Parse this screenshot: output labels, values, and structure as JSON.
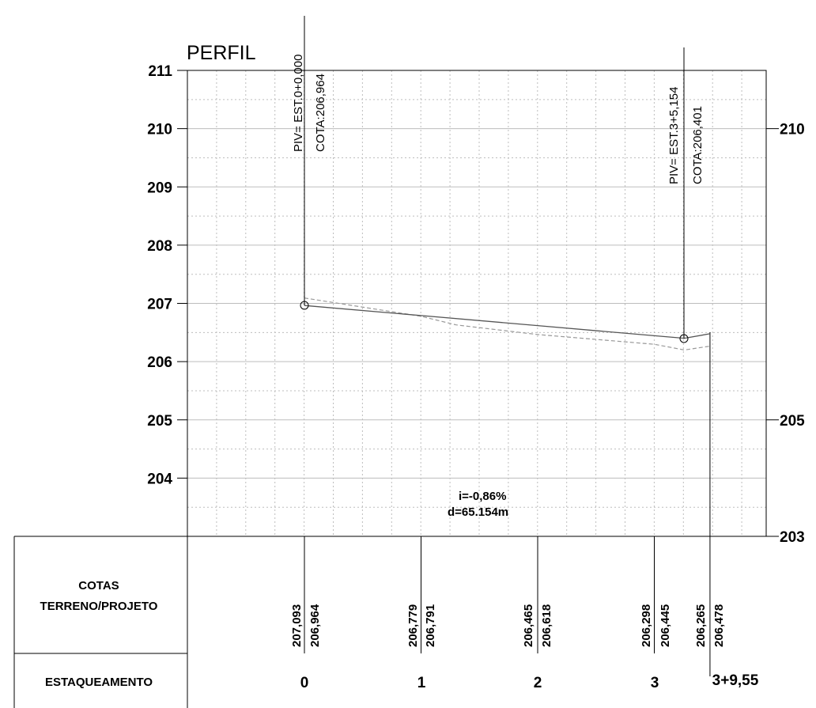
{
  "title": "PERFIL",
  "y_axis_left": [
    "211",
    "210",
    "209",
    "208",
    "207",
    "206",
    "205",
    "204"
  ],
  "y_axis_right": [
    "210",
    "205",
    "203"
  ],
  "piv": [
    {
      "label": "PIV= EST.0+0,000",
      "cota": "COTA:206,964"
    },
    {
      "label": "PIV= EST.3+5,154",
      "cota": "COTA:206,401"
    }
  ],
  "grade_note": {
    "slope": "i=-0,86%",
    "distance": "d=65.154m"
  },
  "table": {
    "row1_label_line1": "COTAS",
    "row1_label_line2": "TERRENO/PROJETO",
    "row2_label": "ESTAQUEAMENTO",
    "cota_pairs": [
      [
        "207,093",
        "206,964"
      ],
      [
        "206,779",
        "206,791"
      ],
      [
        "206,465",
        "206,618"
      ],
      [
        "206,298",
        "206,445"
      ],
      [
        "206,265",
        "206,478"
      ]
    ],
    "stations": [
      "0",
      "1",
      "2",
      "3",
      "3+9,55"
    ]
  },
  "colors": {
    "grid": "#bdbdbd",
    "line": "#000000",
    "terrain": "#999999"
  },
  "chart_data": {
    "type": "line",
    "title": "PERFIL",
    "x_unit": "station (20 m)",
    "ylim": [
      203,
      211
    ],
    "series": [
      {
        "name": "PROJETO",
        "x": [
          0,
          1,
          2,
          3,
          3.2577,
          3.4775
        ],
        "y": [
          206.964,
          206.791,
          206.618,
          206.445,
          206.401,
          206.478
        ]
      },
      {
        "name": "TERRENO",
        "x": [
          0,
          1,
          1.3,
          2,
          3,
          3.2577,
          3.4775
        ],
        "y": [
          207.093,
          206.779,
          206.63,
          206.465,
          206.298,
          206.2,
          206.265
        ]
      }
    ],
    "piv_points": [
      {
        "x": 0,
        "y": 206.964
      },
      {
        "x": 3.2577,
        "y": 206.401
      }
    ]
  }
}
